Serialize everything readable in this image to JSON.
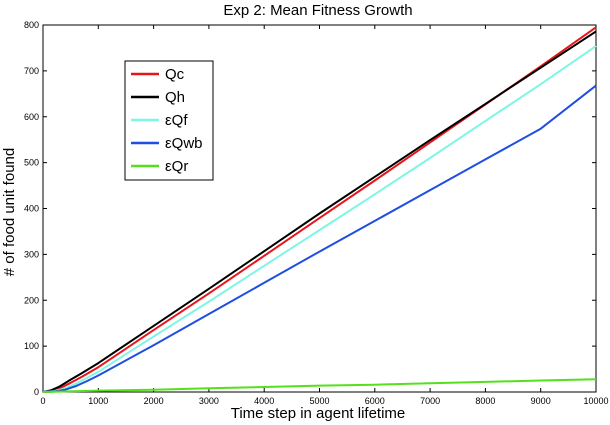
{
  "chart_data": {
    "type": "line",
    "title": "Exp 2: Mean Fitness Growth",
    "xlabel": "Time step in agent lifetime",
    "ylabel": "# of food unit found",
    "xlim": [
      0,
      10000
    ],
    "ylim": [
      0,
      800
    ],
    "xticks": [
      "0",
      "1000",
      "2000",
      "3000",
      "4000",
      "5000",
      "6000",
      "7000",
      "8000",
      "9000",
      "10000"
    ],
    "yticks": [
      "0",
      "100",
      "200",
      "300",
      "400",
      "500",
      "600",
      "700",
      "800"
    ],
    "grid": false,
    "legend_position": "upper-left",
    "series": [
      {
        "name": "Qc",
        "color": "#e8141a",
        "x": [
          0,
          150,
          300,
          500,
          700,
          1000,
          2000,
          3000,
          4000,
          5000,
          6000,
          7000,
          8000,
          9000,
          10000
        ],
        "y": [
          0,
          2,
          8,
          20,
          33,
          54,
          135,
          215,
          297,
          379,
          461,
          544,
          627,
          710,
          795
        ]
      },
      {
        "name": "Qh",
        "color": "#000000",
        "x": [
          0,
          150,
          300,
          500,
          700,
          1000,
          2000,
          3000,
          4000,
          5000,
          6000,
          7000,
          8000,
          9000,
          10000
        ],
        "y": [
          0,
          4,
          12,
          27,
          41,
          63,
          144,
          225,
          307,
          389,
          469,
          549,
          628,
          707,
          786
        ]
      },
      {
        "name": "εQf",
        "color": "#7ff5e4",
        "x": [
          0,
          200,
          400,
          600,
          800,
          1000,
          2000,
          3000,
          4000,
          5000,
          6000,
          7000,
          8000,
          9000,
          10000
        ],
        "y": [
          0,
          2,
          8,
          18,
          31,
          44,
          121,
          197,
          275,
          353,
          431,
          510,
          591,
          671,
          754
        ]
      },
      {
        "name": "εQwb",
        "color": "#1f4ee0",
        "x": [
          0,
          200,
          400,
          600,
          800,
          1000,
          2000,
          3000,
          4000,
          5000,
          6000,
          7000,
          8000,
          9000,
          10000
        ],
        "y": [
          0,
          1,
          5,
          13,
          24,
          36,
          102,
          170,
          238,
          306,
          373,
          440,
          507,
          574,
          668
        ]
      },
      {
        "name": "εQr",
        "color": "#55e01e",
        "x": [
          0,
          1000,
          2000,
          3000,
          4000,
          5000,
          6000,
          7000,
          8000,
          9000,
          10000
        ],
        "y": [
          0,
          3,
          5,
          8,
          11,
          14,
          16,
          19,
          22,
          25,
          28
        ]
      }
    ]
  }
}
